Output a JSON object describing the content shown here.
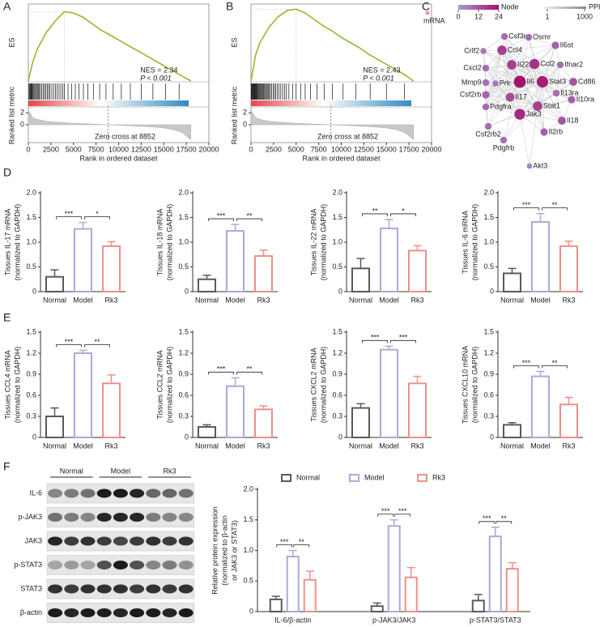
{
  "panel_labels": [
    "A",
    "B",
    "C",
    "D",
    "E",
    "F"
  ],
  "chart_data": [
    {
      "type": "gsea",
      "color": "#8dbe2a",
      "y_label": "ES",
      "y2_label": "Ranked list metric",
      "x_label": "Rank in ordered dataset",
      "nes": "NES = 2.34",
      "p_value": "P < 0.001",
      "zero_cross": "Zero cross at 8852",
      "xlim": [
        0,
        20000
      ],
      "xticks": [
        0,
        2500,
        5000,
        7500,
        10000,
        12500,
        15000,
        17500,
        20000
      ],
      "ylim": [
        0,
        0.6
      ],
      "y2lim": [
        -3,
        3
      ],
      "y2ticks": [
        2,
        0
      ],
      "x": [
        0,
        500,
        1000,
        2000,
        3000,
        4000,
        5000,
        6000,
        7000,
        8000,
        9000,
        10000,
        11000,
        12000,
        13000,
        14000,
        15000,
        16000,
        17000,
        18000
      ],
      "es": [
        0,
        0.15,
        0.25,
        0.38,
        0.47,
        0.54,
        0.53,
        0.5,
        0.45,
        0.4,
        0.36,
        0.32,
        0.28,
        0.24,
        0.2,
        0.16,
        0.12,
        0.08,
        0.04,
        0
      ],
      "metric": [
        2.5,
        1.2,
        0.9,
        0.6,
        0.45,
        0.35,
        0.25,
        0.18,
        0.12,
        0.06,
        -0.01,
        -0.08,
        -0.15,
        -0.22,
        -0.3,
        -0.4,
        -0.55,
        -0.8,
        -1.3,
        -2.5
      ],
      "hits": [
        30,
        120,
        200,
        280,
        350,
        420,
        500,
        600,
        700,
        800,
        900,
        1000,
        1100,
        1200,
        1350,
        1500,
        1650,
        1800,
        1950,
        2100,
        2250,
        2400,
        2600,
        2800,
        3000,
        3200,
        3400,
        3600,
        3800,
        4000,
        4400,
        4800,
        5200,
        5600,
        6100,
        6600,
        7200,
        7900,
        8600,
        9400,
        10300,
        11300,
        12500,
        13800,
        15200,
        16700
      ]
    },
    {
      "type": "gsea",
      "color": "#8dbe2a",
      "y_label": "ES",
      "y2_label": "Ranked list metric",
      "x_label": "Rank in ordered dataset",
      "nes": "NES = 2.43",
      "p_value": "P < 0.001",
      "zero_cross": "Zero cross at 8852",
      "xlim": [
        0,
        20000
      ],
      "xticks": [
        0,
        2500,
        5000,
        7500,
        10000,
        12500,
        15000,
        17500,
        20000
      ],
      "ylim": [
        0,
        0.6
      ],
      "y2lim": [
        -3,
        3
      ],
      "y2ticks": [
        2,
        0
      ],
      "x": [
        0,
        500,
        1000,
        2000,
        3000,
        4000,
        5000,
        6000,
        7000,
        8000,
        9000,
        10000,
        11000,
        12000,
        13000,
        14000,
        15000,
        16000,
        17000,
        18000
      ],
      "es": [
        0,
        0.2,
        0.3,
        0.42,
        0.5,
        0.55,
        0.56,
        0.53,
        0.48,
        0.43,
        0.39,
        0.34,
        0.3,
        0.26,
        0.21,
        0.17,
        0.13,
        0.09,
        0.05,
        0
      ],
      "metric": [
        2.5,
        1.2,
        0.9,
        0.6,
        0.45,
        0.35,
        0.25,
        0.18,
        0.12,
        0.06,
        -0.01,
        -0.08,
        -0.15,
        -0.22,
        -0.3,
        -0.4,
        -0.55,
        -0.8,
        -1.3,
        -2.5
      ],
      "hits": [
        20,
        80,
        140,
        200,
        260,
        320,
        380,
        440,
        500,
        560,
        620,
        700,
        780,
        860,
        940,
        1020,
        1100,
        1200,
        1300,
        1400,
        1500,
        1600,
        1700,
        1800,
        1900,
        2000,
        2150,
        2300,
        2450,
        2600,
        2750,
        2900,
        3100,
        3300,
        3500,
        3700,
        3900,
        4200,
        4600,
        5000,
        5500,
        6000,
        6600,
        7300,
        8100,
        9000,
        10200,
        11600,
        13200,
        15000,
        17000
      ]
    },
    {
      "type": "network",
      "legend_mrna": "mRNA",
      "legend_node": "Node",
      "node_ticks": [
        0,
        12,
        24
      ],
      "legend_ppi": "PPI",
      "ppi_ticks": [
        1,
        1000
      ],
      "mrna_color": "#f29a8f",
      "node_colors": [
        "#a59ad6",
        "#a5126c"
      ],
      "nodes": [
        {
          "label": "Csf3r",
          "degree": 8
        },
        {
          "label": "Osmr",
          "degree": 8
        },
        {
          "label": "Il6st",
          "degree": 10
        },
        {
          "label": "Crlf2",
          "degree": 6
        },
        {
          "label": "Ccl4",
          "degree": 16
        },
        {
          "label": "Cxcl2",
          "degree": 8
        },
        {
          "label": "Il22",
          "degree": 16
        },
        {
          "label": "Ccl2",
          "degree": 18
        },
        {
          "label": "Ifnar2",
          "degree": 8
        },
        {
          "label": "Cd86",
          "degree": 12
        },
        {
          "label": "Mmp9",
          "degree": 8
        },
        {
          "label": "Prlr",
          "degree": 6
        },
        {
          "label": "Il6",
          "degree": 24
        },
        {
          "label": "Stat3",
          "degree": 22
        },
        {
          "label": "Il13ra",
          "degree": 8
        },
        {
          "label": "Il10ra",
          "degree": 10
        },
        {
          "label": "Csf2rb",
          "degree": 10
        },
        {
          "label": "Il17",
          "degree": 14
        },
        {
          "label": "Pdgfra",
          "degree": 8
        },
        {
          "label": "Stat1",
          "degree": 16
        },
        {
          "label": "Jak3",
          "degree": 20
        },
        {
          "label": "Il18",
          "degree": 12
        },
        {
          "label": "Csf2rb2",
          "degree": 8
        },
        {
          "label": "Pdgfrb",
          "degree": 8
        },
        {
          "label": "Il2rb",
          "degree": 10
        },
        {
          "label": "Akt3",
          "degree": 4
        }
      ]
    },
    {
      "type": "bar",
      "y_label": [
        "Tissues IL-17 mRNA",
        "(normalized to GAPDH)"
      ],
      "categories": [
        "Normal",
        "Model",
        "Rk3"
      ],
      "colors": [
        "#5a5a5a",
        "#a7acd9",
        "#ef8f8b"
      ],
      "values": [
        0.3,
        1.27,
        0.92
      ],
      "errors": [
        0.14,
        0.13,
        0.09
      ],
      "significance": [
        "***",
        "*"
      ],
      "ylim": [
        0,
        2
      ],
      "yticks": [
        0,
        0.5,
        {
          "value": 1,
          "label": "1.0"
        },
        1.5,
        {
          "value": 2,
          "label": "2.0"
        }
      ]
    },
    {
      "type": "bar",
      "y_label": [
        "Tissues IL-18 mRNA",
        "(normalized to GAPDH)"
      ],
      "categories": [
        "Normal",
        "Model",
        "Rk3"
      ],
      "colors": [
        "#5a5a5a",
        "#a7acd9",
        "#ef8f8b"
      ],
      "values": [
        0.25,
        1.23,
        0.72
      ],
      "errors": [
        0.08,
        0.13,
        0.12
      ],
      "significance": [
        "***",
        "**"
      ],
      "ylim": [
        0,
        2
      ],
      "yticks": [
        0,
        0.5,
        {
          "value": 1,
          "label": "1.0"
        },
        1.5,
        {
          "value": 2,
          "label": "2.0"
        }
      ]
    },
    {
      "type": "bar",
      "y_label": [
        "Tissues IL-22 mRNA",
        "(normalized to GAPDH)"
      ],
      "categories": [
        "Normal",
        "Model",
        "Rk3"
      ],
      "colors": [
        "#5a5a5a",
        "#a7acd9",
        "#ef8f8b"
      ],
      "values": [
        0.47,
        1.28,
        0.83
      ],
      "errors": [
        0.2,
        0.18,
        0.1
      ],
      "significance": [
        "**",
        "*"
      ],
      "ylim": [
        0,
        2
      ],
      "yticks": [
        0,
        0.5,
        {
          "value": 1,
          "label": "1.0"
        },
        1.5,
        {
          "value": 2,
          "label": "2.0"
        }
      ]
    },
    {
      "type": "bar",
      "y_label": [
        "Tissues IL-6 mRNA",
        "(normalized to GAPDH)"
      ],
      "categories": [
        "Normal",
        "Model",
        "Rk3"
      ],
      "colors": [
        "#5a5a5a",
        "#a7acd9",
        "#ef8f8b"
      ],
      "values": [
        0.37,
        1.41,
        0.92
      ],
      "errors": [
        0.1,
        0.17,
        0.1
      ],
      "significance": [
        "***",
        "**"
      ],
      "ylim": [
        0,
        2
      ],
      "yticks": [
        0,
        0.5,
        {
          "value": 1,
          "label": "1.0"
        },
        1.5,
        {
          "value": 2,
          "label": "2.0"
        }
      ]
    },
    {
      "type": "bar",
      "y_label": [
        "Tissues CCL4 mRNA",
        "(normalized to GAPDH)"
      ],
      "categories": [
        "Normal",
        "Model",
        "Rk3"
      ],
      "colors": [
        "#5a5a5a",
        "#a7acd9",
        "#ef8f8b"
      ],
      "values": [
        0.3,
        1.2,
        0.77
      ],
      "errors": [
        0.12,
        0.04,
        0.12
      ],
      "significance": [
        "***",
        "**"
      ],
      "ylim": [
        0,
        1.5
      ],
      "yticks": [
        0,
        0.3,
        0.6,
        0.9,
        1.2,
        1.5
      ]
    },
    {
      "type": "bar",
      "y_label": [
        "Tissues CCL2 mRNA",
        "(normalized to GAPDH)"
      ],
      "categories": [
        "Normal",
        "Model",
        "Rk3"
      ],
      "colors": [
        "#5a5a5a",
        "#a7acd9",
        "#ef8f8b"
      ],
      "values": [
        0.15,
        0.73,
        0.4
      ],
      "errors": [
        0.03,
        0.12,
        0.05
      ],
      "significance": [
        "***",
        "**"
      ],
      "ylim": [
        0,
        1.5
      ],
      "yticks": [
        0,
        0.3,
        0.6,
        0.9,
        1.2,
        1.5
      ]
    },
    {
      "type": "bar",
      "y_label": [
        "Tissues CXCL2 mRNA",
        "(normalized to GAPDH)"
      ],
      "categories": [
        "Normal",
        "Model",
        "Rk3"
      ],
      "colors": [
        "#5a5a5a",
        "#a7acd9",
        "#ef8f8b"
      ],
      "values": [
        0.42,
        1.25,
        0.77
      ],
      "errors": [
        0.06,
        0.05,
        0.1
      ],
      "significance": [
        "***",
        "***"
      ],
      "ylim": [
        0,
        1.5
      ],
      "yticks": [
        0,
        0.3,
        0.6,
        0.9,
        1.2,
        1.5
      ]
    },
    {
      "type": "bar",
      "y_label": [
        "Tissues CXCL10 mRNA",
        "(normalized to GAPDH)"
      ],
      "categories": [
        "Normal",
        "Model",
        "Rk3"
      ],
      "colors": [
        "#5a5a5a",
        "#a7acd9",
        "#ef8f8b"
      ],
      "values": [
        0.18,
        0.87,
        0.47
      ],
      "errors": [
        0.03,
        0.07,
        0.1
      ],
      "significance": [
        "***",
        "**"
      ],
      "ylim": [
        0,
        1.5
      ],
      "yticks": [
        0,
        0.3,
        0.6,
        0.9,
        1.2,
        1.5
      ]
    },
    {
      "type": "grouped_bar",
      "y_label": [
        "Relative protein expression",
        "(normalized to β-actin",
        "or JAK3 or STAT3)"
      ],
      "categories": [
        "IL-6/β-actin",
        "p-JAK3/JAK3",
        "p-STAT3/STAT3"
      ],
      "series": [
        {
          "name": "Normal",
          "color": "#5a5a5a",
          "values": [
            0.2,
            0.09,
            0.18
          ],
          "errors": [
            0.05,
            0.05,
            0.1
          ]
        },
        {
          "name": "Model",
          "color": "#a7acd9",
          "values": [
            0.9,
            1.4,
            1.23
          ],
          "errors": [
            0.1,
            0.1,
            0.15
          ]
        },
        {
          "name": "Rk3",
          "color": "#ef8f8b",
          "values": [
            0.52,
            0.56,
            0.7
          ],
          "errors": [
            0.14,
            0.16,
            0.1
          ]
        }
      ],
      "significance": [
        [
          "***",
          "**"
        ],
        [
          "***",
          "***"
        ],
        [
          "***",
          "**"
        ]
      ],
      "legend": "top",
      "ylim": [
        0,
        2
      ],
      "yticks": [
        0,
        0.5,
        {
          "value": 1,
          "label": "1.0"
        },
        1.5,
        {
          "value": 2,
          "label": "2.0"
        }
      ]
    }
  ],
  "blot": {
    "groups": [
      "Normal",
      "Model",
      "Rk3"
    ],
    "rows": [
      "IL-6",
      "p-JAK3",
      "JAK3",
      "p-STAT3",
      "STAT3",
      "β-actin"
    ]
  }
}
